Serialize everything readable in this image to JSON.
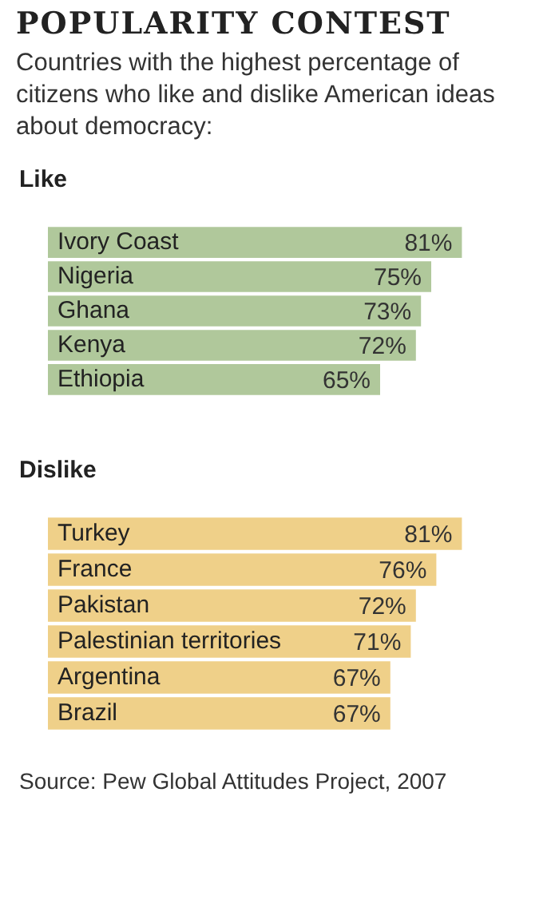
{
  "chart_data": [
    {
      "type": "bar",
      "orientation": "horizontal",
      "title": "POPULARITY CONTEST",
      "subtitle": "Countries with the highest percentage of citizens who like and dislike American ideas about democracy:",
      "categories": [
        "Ivory Coast",
        "Nigeria",
        "Ghana",
        "Kenya",
        "Ethiopia"
      ],
      "series": [
        {
          "name": "Like",
          "color": "#b0c89b",
          "values": [
            81,
            75,
            73,
            72,
            65
          ],
          "value_labels": [
            "81%",
            "75%",
            "73%",
            "72%",
            "65%"
          ]
        }
      ],
      "tick_labels": "y",
      "legend": false
    },
    {
      "type": "bar",
      "orientation": "horizontal",
      "categories": [
        "Turkey",
        "France",
        "Pakistan",
        "Palestinian territories",
        "Argentina",
        "Brazil"
      ],
      "series": [
        {
          "name": "Dislike",
          "color": "#efd089",
          "values": [
            81,
            76,
            72,
            71,
            67,
            67
          ],
          "value_labels": [
            "81%",
            "76%",
            "72%",
            "71%",
            "67%",
            "67%"
          ]
        }
      ],
      "tick_labels": "y",
      "legend": false,
      "annotations": [
        "Source: Pew Global Attitudes Project, 2007"
      ]
    }
  ]
}
